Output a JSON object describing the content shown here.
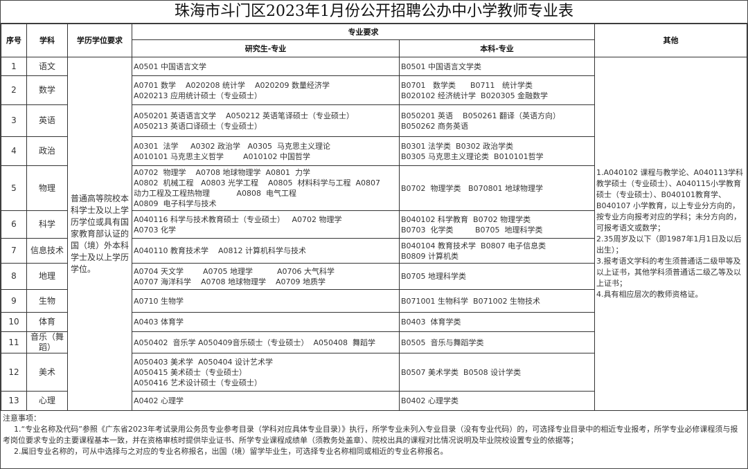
{
  "title": "珠海市斗门区2023年1月份公开招聘公办中小学教师专业表",
  "headers": {
    "no": "序号",
    "subject": "学科",
    "education": "学历学位要求",
    "major_req": "专业要求",
    "graduate": "研究生-专业",
    "undergrad": "本科-专业",
    "other": "其他"
  },
  "education_requirement": "普通高等院校本科学士及以上学历学位或具有国家教育部认证的国（境）外本科学士及以上学历学位。",
  "other_requirements": [
    "1.A040102 课程与教学论、A040113学科教学硕士（专业硕士）、A040115小学教育硕士（专业硕士）、B040101教育学、B040107 小学教育，以上专业分方向的，按专业方向报考对应的学科；未分方向的，可报考语文或数学；",
    "2.35周岁及以下（即1987年1月1日及以后出生）；",
    "3.报考语文学科的考生须普通话二级甲等及以上证书，其他学科须普通话二级乙等及以上证书；",
    "4.具有相应层次的教师资格证。"
  ],
  "rows": [
    {
      "no": "1",
      "subject": "语文",
      "graduate": [
        "A0501 中国语言文学"
      ],
      "undergrad": [
        "B0501 中国语言文学类"
      ]
    },
    {
      "no": "2",
      "subject": "数学",
      "graduate": [
        "A0701 数学    A020208 统计学    A020209 数量经济学",
        "A020213 应用统计硕士（专业硕士）"
      ],
      "undergrad": [
        "B0701   数学类      B0711   统计学类",
        "B020102 经济统计学  B020305 金融数学"
      ]
    },
    {
      "no": "3",
      "subject": "英语",
      "graduate": [
        "A050201 英语语言文学    A050212 英语笔译硕士（专业硕士）",
        "A050213 英语口译硕士（专业硕士）"
      ],
      "undergrad": [
        "B050201 英语    B050261 翻译（英语方向）",
        "B050262 商务英语"
      ]
    },
    {
      "no": "4",
      "subject": "政治",
      "graduate": [
        "A0301  法学     A0302 政治学   A0305  马克思主义理论",
        "A010101 马克思主义哲学        A010102 中国哲学"
      ],
      "undergrad": [
        "B0301 法学类  B0302 政治学类",
        "B0305 马克思主义理论类  B010101哲学"
      ]
    },
    {
      "no": "5",
      "subject": "物理",
      "graduate": [
        "A0702  物理学    A0708 地球物理学  A0801  力学",
        "A0802  机械工程   A0803 光学工程    A0805  材料科学与工程  A0807",
        "动力工程及工程热物理           A0808  电气工程",
        "A0809  电子科学与技术"
      ],
      "undergrad": [
        "B0702  物理学类   B070801 地球物理学"
      ]
    },
    {
      "no": "6",
      "subject": "科学",
      "graduate": [
        "A040116 科学与技术教育硕士（专业硕士）   A0702 物理学",
        "A0703 化学"
      ],
      "undergrad": [
        "B040102 科学教育  B0702 物理学类",
        "B0703  化学类         B0705  地理科学类"
      ]
    },
    {
      "no": "7",
      "subject": "信息技术",
      "graduate": [
        "A040110 教育技术学    A0812 计算机科学与技术"
      ],
      "undergrad": [
        "B040104 教育技术学  B0807 电子信息类",
        "B0809 计算机类"
      ]
    },
    {
      "no": "8",
      "subject": "地理",
      "graduate": [
        "A0704 天文学        A0705 地理学          A0706 大气科学",
        "A0707 海洋科学    A0708 地球物理学    A0709 地质学"
      ],
      "undergrad": [
        "B0705 地理科学类"
      ]
    },
    {
      "no": "9",
      "subject": "生物",
      "graduate": [
        "A0710 生物学"
      ],
      "undergrad": [
        "B071001 生物科学  B071002 生物技术"
      ]
    },
    {
      "no": "10",
      "subject": "体育",
      "graduate": [
        "A0403 体育学"
      ],
      "undergrad": [
        "B0403  体育学类"
      ]
    },
    {
      "no": "11",
      "subject": "音乐（舞蹈）",
      "graduate": [
        "A050402  音乐学 A050409音乐硕士（专业硕士）  A050408  舞蹈学"
      ],
      "undergrad": [
        "B0505  音乐与舞蹈学类"
      ]
    },
    {
      "no": "12",
      "subject": "美术",
      "graduate": [
        "A050403 美术学  A050404 设计艺术学",
        "A050415 美术硕士（专业硕士）",
        "A050416 艺术设计硕士（专业硕士）"
      ],
      "undergrad": [
        "B0507 美术学类  B0508 设计学类"
      ]
    },
    {
      "no": "13",
      "subject": "心理",
      "graduate": [
        "A0402 心理学"
      ],
      "undergrad": [
        "B0402 心理学类"
      ]
    }
  ],
  "notes": {
    "heading": "注意事项：",
    "items": [
      "1.“专业名称及代码”参照《广东省2023年考试录用公务员专业参考目录（学科对应具体专业目录）》执行，所学专业未列入专业目录（没有专业代码）的，可选择专业目录中的相近专业报考，所学专业必修课程须与报考岗位要求专业的主要课程基本一致，并在资格审核时提供毕业证书、所学专业课程成绩单（须教务处盖章）、院校出具的课程对比情况说明及毕业院校设置专业的依据等；",
      "2.属旧专业名称的，可从中选择与之对应的专业名称报名，出国（境）留学毕业生，可选择专业名称相同或相近的专业名称报名。"
    ]
  }
}
